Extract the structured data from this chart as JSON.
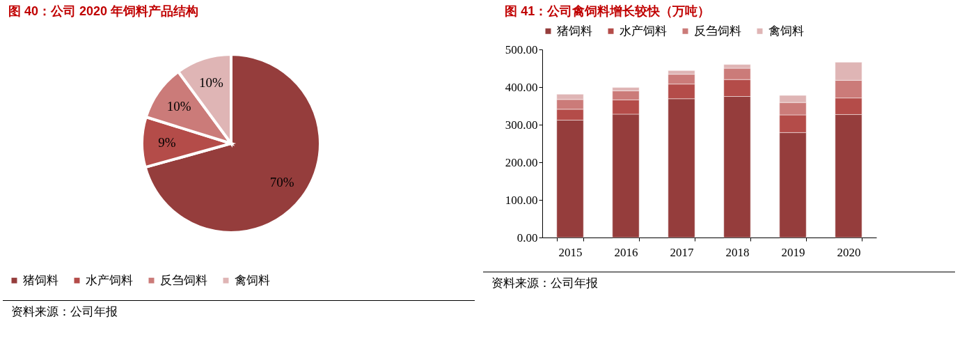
{
  "chart_data": [
    {
      "type": "pie",
      "title": "图 40：公司 2020 年饲料产品结构",
      "categories": [
        "猪饲料",
        "水产饲料",
        "反刍饲料",
        "禽饲料"
      ],
      "values": [
        70,
        9,
        10,
        10
      ],
      "value_labels": [
        "70%",
        "9%",
        "10%",
        "10%"
      ],
      "colors": [
        "#953d3c",
        "#b44c49",
        "#cb7b79",
        "#dfb5b5"
      ],
      "legend": "bottom",
      "annotations": [
        "资料来源：公司年报"
      ]
    },
    {
      "type": "bar",
      "title": "图 41：公司禽饲料增长较快（万吨）",
      "categories": [
        "2015",
        "2016",
        "2017",
        "2018",
        "2019",
        "2020"
      ],
      "stacked": true,
      "legend": "top",
      "grid": false,
      "series": [
        {
          "name": "猪饲料",
          "color": "#953d3c",
          "values": [
            312,
            328,
            369,
            375,
            279,
            327
          ]
        },
        {
          "name": "水产饲料",
          "color": "#b44c49",
          "values": [
            29,
            38,
            39,
            45,
            47,
            44
          ]
        },
        {
          "name": "反刍饲料",
          "color": "#cb7b79",
          "values": [
            26,
            24,
            26,
            30,
            33,
            47
          ]
        },
        {
          "name": "禽饲料",
          "color": "#dfb5b5",
          "values": [
            14,
            9,
            10,
            10,
            19,
            48
          ]
        }
      ],
      "ylim": [
        0,
        500
      ],
      "yticks": [
        {
          "value": 0,
          "label": "0.00"
        },
        {
          "value": 100,
          "label": "100.00"
        },
        {
          "value": 200,
          "label": "200.00"
        },
        {
          "value": 300,
          "label": "300.00"
        },
        {
          "value": 400,
          "label": "400.00"
        },
        {
          "value": 500,
          "label": "500.00"
        }
      ],
      "annotations": [
        "资料来源：公司年报"
      ]
    }
  ]
}
